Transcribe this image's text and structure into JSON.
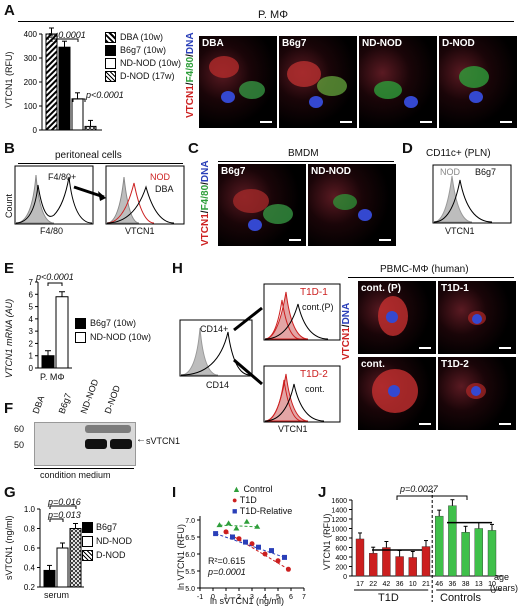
{
  "panels": [
    "A",
    "B",
    "C",
    "D",
    "E",
    "F",
    "G",
    "H",
    "I",
    "J"
  ],
  "colors": {
    "red": "#cc1f1f",
    "green": "#2e9e3a",
    "blue": "#2a3fb8",
    "pink": "#e3a5a5",
    "gray": "#bdbdbd"
  },
  "panel_a": {
    "header": "P. MΦ",
    "ylabel": "VTCN1 (RFU)",
    "legend": [
      "DBA (10w)",
      "B6g7 (10w)",
      "ND-NOD (10w)",
      "D-NOD (17w)"
    ],
    "p1": "p<0.0001",
    "p2": "p<0.0001",
    "micro_labels": [
      "DBA",
      "B6g7",
      "ND-NOD",
      "D-NOD"
    ],
    "stain": [
      "VTCN1",
      "/",
      "F4/80",
      "/",
      "DNA"
    ]
  },
  "panel_b": {
    "title": "peritoneal cells",
    "gate": "F4/80+",
    "ylabel": "Count",
    "xlabel1": "F4/80",
    "xlabel2": "VTCN1",
    "lab_nod": "NOD",
    "lab_dba": "DBA"
  },
  "panel_c": {
    "title": "BMDM",
    "labels": [
      "B6g7",
      "ND-NOD"
    ],
    "stain": [
      "VTCN1",
      "/",
      "F4/80",
      "/",
      "DNA"
    ]
  },
  "panel_d": {
    "title": "CD11c+ (PLN)",
    "lab_nod": "NOD",
    "lab_b6": "B6g7",
    "xlabel": "VTCN1"
  },
  "panel_e": {
    "ylabel": "VTCN1 mRNA (AU)",
    "p": "p<0.0001",
    "xlabel": "P. MΦ",
    "legend": [
      "B6g7 (10w)",
      "ND-NOD (10w)"
    ],
    "ticks": [
      0,
      1,
      2,
      3,
      4,
      5,
      6,
      7
    ]
  },
  "panel_f": {
    "lanes": [
      "DBA",
      "B6g7",
      "ND-NOD",
      "D-NOD"
    ],
    "mw": [
      "60",
      "50"
    ],
    "band": "sVTCN1",
    "caption": "condition medium"
  },
  "panel_g": {
    "ylabel": "sVTCN1 (ng/ml)",
    "p1": "p=0.016",
    "p2": "p=0.013",
    "xlabel": "serum",
    "legend": [
      "B6g7",
      "ND-NOD",
      "D-NOD"
    ],
    "ticks": [
      "0.2",
      "0.4",
      "0.6",
      "0.8",
      "1.0"
    ]
  },
  "panel_h": {
    "header": "PBMC-MΦ (human)",
    "gate": "CD14+",
    "xlabel": "CD14",
    "xlabel2": "VTCN1",
    "hist1_labels": [
      "T1D-1",
      "cont.(P)"
    ],
    "hist2_labels": [
      "T1D-2",
      "cont."
    ],
    "micro_labels": [
      "cont. (P)",
      "T1D-1",
      "cont.",
      "T1D-2"
    ],
    "stain": [
      "VTCN1",
      "/",
      "DNA"
    ]
  },
  "panel_i": {
    "ylabel": "ln VTCN1 (RFU)",
    "xlabel": "ln sVTCN1 (ng/ml)",
    "legend": [
      "Control",
      "T1D",
      "T1D-Relative"
    ],
    "r2": "R²=0.615",
    "p": "p=0.0001",
    "yticks": [
      "5.0",
      "5.5",
      "6.0",
      "6.5",
      "7.0"
    ],
    "xticks": [
      "-1",
      "0",
      "1",
      "2",
      "3",
      "4",
      "5",
      "6",
      "7"
    ]
  },
  "panel_j": {
    "ylabel": "VTCN1 (RFU)",
    "p": "p=0.0027",
    "ages": [
      "17",
      "22",
      "42",
      "36",
      "10",
      "21",
      "46",
      "36",
      "38",
      "13",
      "10"
    ],
    "age_label": "age",
    "age_unit": "(years)",
    "group1": "T1D",
    "group2": "Controls",
    "yticks": [
      "0",
      "200",
      "400",
      "600",
      "800",
      "1000",
      "1200",
      "1400",
      "1600"
    ]
  },
  "chart_data": [
    {
      "panel": "A",
      "type": "bar",
      "categories": [
        "DBA (10w)",
        "B6g7 (10w)",
        "ND-NOD (10w)",
        "D-NOD (17w)"
      ],
      "values": [
        410,
        345,
        130,
        15
      ],
      "ylabel": "VTCN1 (RFU)",
      "ylim": [
        0,
        400
      ]
    },
    {
      "panel": "E",
      "type": "bar",
      "categories": [
        "B6g7 (10w)",
        "ND-NOD (10w)"
      ],
      "values": [
        1.0,
        5.8
      ],
      "ylabel": "VTCN1 mRNA (AU)",
      "ylim": [
        0,
        7
      ]
    },
    {
      "panel": "G",
      "type": "bar",
      "categories": [
        "B6g7",
        "ND-NOD",
        "D-NOD"
      ],
      "values": [
        0.37,
        0.6,
        0.8
      ],
      "ylabel": "sVTCN1 (ng/ml)",
      "ylim": [
        0.2,
        1.0
      ]
    },
    {
      "panel": "I",
      "type": "scatter",
      "xlabel": "ln sVTCN1 (ng/ml)",
      "ylabel": "ln VTCN1 (RFU)",
      "xlim": [
        -1,
        7
      ],
      "ylim": [
        5.0,
        7.0
      ],
      "series": [
        {
          "name": "Control",
          "x": [
            0.5,
            1.2,
            1.8,
            2.6,
            3.4
          ],
          "y": [
            6.85,
            6.9,
            6.75,
            6.95,
            6.8
          ]
        },
        {
          "name": "T1D",
          "x": [
            1.0,
            2.0,
            3.0,
            4.0,
            5.0,
            5.8
          ],
          "y": [
            6.65,
            6.45,
            6.3,
            6.0,
            5.8,
            5.55
          ]
        },
        {
          "name": "T1D-Relative",
          "x": [
            0.2,
            1.5,
            2.5,
            3.5,
            4.5,
            5.5
          ],
          "y": [
            6.6,
            6.5,
            6.35,
            6.2,
            6.1,
            5.9
          ]
        }
      ]
    },
    {
      "panel": "J",
      "type": "bar",
      "categories": [
        "17",
        "22",
        "42",
        "36",
        "10",
        "21",
        "46",
        "36",
        "38",
        "13",
        "10"
      ],
      "values": [
        780,
        480,
        600,
        410,
        390,
        620,
        1260,
        1480,
        920,
        1000,
        960
      ],
      "ylim": [
        0,
        1600
      ]
    }
  ]
}
